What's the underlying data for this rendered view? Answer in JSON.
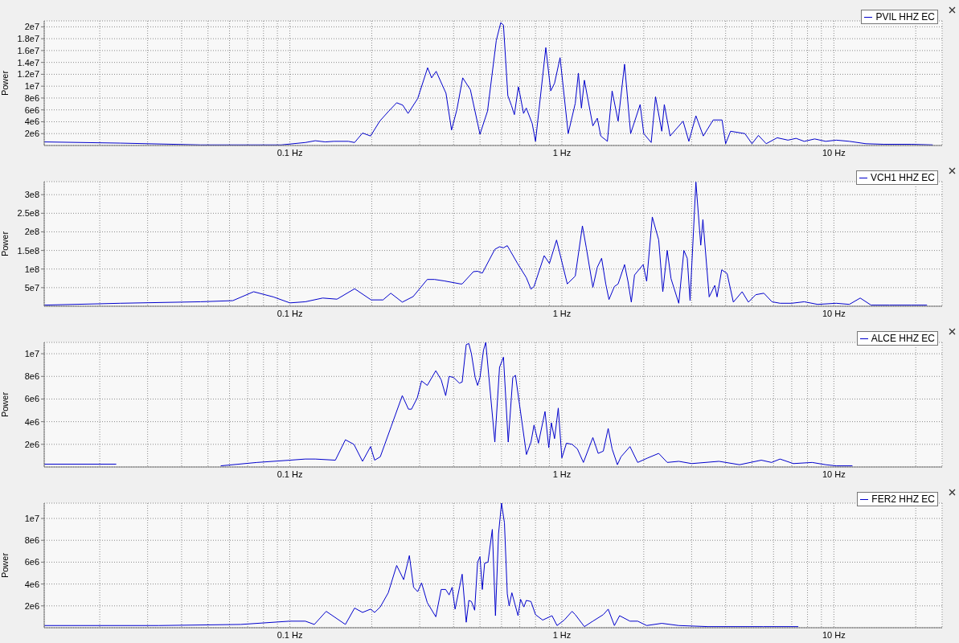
{
  "chart_data": [
    {
      "type": "line",
      "ylabel": "Power",
      "log": "x",
      "grid": true,
      "legend": "top right",
      "xlim": [
        0.0125,
        25
      ],
      "xticks": [
        {
          "value": 0.02,
          "label": null
        },
        {
          "value": 0.03,
          "label": null
        },
        {
          "value": 0.04,
          "label": null
        },
        {
          "value": 0.05,
          "label": null
        },
        {
          "value": 0.06,
          "label": null
        },
        {
          "value": 0.07,
          "label": null
        },
        {
          "value": 0.08,
          "label": null
        },
        {
          "value": 0.09,
          "label": null
        },
        {
          "value": 0.1,
          "label": "0.1 Hz"
        },
        {
          "value": 0.2,
          "label": null
        },
        {
          "value": 0.3,
          "label": null
        },
        {
          "value": 0.4,
          "label": null
        },
        {
          "value": 0.5,
          "label": null
        },
        {
          "value": 0.6,
          "label": null
        },
        {
          "value": 0.7,
          "label": null
        },
        {
          "value": 0.8,
          "label": null
        },
        {
          "value": 0.9,
          "label": null
        },
        {
          "value": 1,
          "label": "1 Hz"
        },
        {
          "value": 2,
          "label": null
        },
        {
          "value": 3,
          "label": null
        },
        {
          "value": 4,
          "label": null
        },
        {
          "value": 5,
          "label": null
        },
        {
          "value": 6,
          "label": null
        },
        {
          "value": 7,
          "label": null
        },
        {
          "value": 8,
          "label": null
        },
        {
          "value": 9,
          "label": null
        },
        {
          "value": 10,
          "label": "10 Hz"
        },
        {
          "value": 20,
          "label": null
        }
      ],
      "ylim": [
        0,
        21000000.0
      ],
      "yticks": [
        {
          "value": 2000000.0,
          "label": "2e6"
        },
        {
          "value": 4000000.0,
          "label": "4e6"
        },
        {
          "value": 6000000.0,
          "label": "6e6"
        },
        {
          "value": 8000000.0,
          "label": "8e6"
        },
        {
          "value": 10000000.0,
          "label": "1e7"
        },
        {
          "value": 12000000.0,
          "label": "1.2e7"
        },
        {
          "value": 14000000.0,
          "label": "1.4e7"
        },
        {
          "value": 16000000.0,
          "label": "1.6e7"
        },
        {
          "value": 18000000.0,
          "label": "1.8e7"
        },
        {
          "value": 20000000.0,
          "label": "2e7"
        }
      ],
      "series": [
        {
          "name": "PVIL HHZ EC",
          "color": "#0000cc",
          "x": [
            0.0125,
            0.0238,
            0.047,
            0.093,
            0.114,
            0.124,
            0.135,
            0.145,
            0.164,
            0.173,
            0.185,
            0.198,
            0.214,
            0.23,
            0.247,
            0.26,
            0.272,
            0.295,
            0.321,
            0.332,
            0.345,
            0.375,
            0.393,
            0.411,
            0.432,
            0.461,
            0.5,
            0.533,
            0.574,
            0.596,
            0.61,
            0.633,
            0.653,
            0.669,
            0.692,
            0.7,
            0.723,
            0.74,
            0.778,
            0.8,
            0.873,
            0.91,
            0.94,
            0.985,
            1.055,
            1.12,
            1.15,
            1.18,
            1.21,
            1.3,
            1.35,
            1.39,
            1.47,
            1.53,
            1.61,
            1.7,
            1.79,
            1.94,
            2.0,
            2.13,
            2.21,
            2.33,
            2.38,
            2.5,
            2.79,
            2.93,
            3.11,
            3.31,
            3.6,
            3.88,
            4.0,
            4.17,
            4.71,
            5.0,
            5.28,
            5.64,
            6.19,
            6.78,
            7.26,
            7.78,
            8.5,
            9.33,
            10.2,
            11.4,
            13.1,
            15.3,
            19.2,
            23.1
          ],
          "values": [
            600000.0,
            400000.0,
            100000.0,
            100000.0,
            500000.0,
            800000.0,
            600000.0,
            700000.0,
            700000.0,
            500000.0,
            2100000.0,
            1600000.0,
            4100000.0,
            5700000.0,
            7200000.0,
            6800000.0,
            5400000.0,
            7900000.0,
            13100000.0,
            11400000.0,
            12500000.0,
            8800000.0,
            2600000.0,
            6000000.0,
            11400000.0,
            9400000.0,
            1900000.0,
            5800000.0,
            17700000.0,
            20700000.0,
            20300000.0,
            8400000.0,
            6700000.0,
            5200000.0,
            9900000.0,
            8800000.0,
            5400000.0,
            6300000.0,
            3700000.0,
            700000.0,
            16500000.0,
            9200000.0,
            10500000.0,
            14800000.0,
            2000000.0,
            7100000.0,
            12200000.0,
            6300000.0,
            11000000.0,
            3300000.0,
            4600000.0,
            1600000.0,
            700000.0,
            9200000.0,
            4100000.0,
            13700000.0,
            2000000.0,
            6900000.0,
            2000000.0,
            500000.0,
            8200000.0,
            2400000.0,
            6900000.0,
            1600000.0,
            4100000.0,
            700000.0,
            5000000.0,
            1600000.0,
            4300000.0,
            4300000.0,
            300000.0,
            2400000.0,
            2000000.0,
            300000.0,
            1700000.0,
            300000.0,
            1300000.0,
            900000.0,
            1200000.0,
            700000.0,
            1100000.0,
            700000.0,
            900000.0,
            700000.0,
            300000.0,
            200000.0,
            200000.0,
            100000.0
          ]
        }
      ]
    },
    {
      "type": "line",
      "ylabel": "Power",
      "log": "x",
      "grid": true,
      "legend": "top right",
      "xlim": [
        0.0125,
        25
      ],
      "xticks": [
        {
          "value": 0.02,
          "label": null
        },
        {
          "value": 0.03,
          "label": null
        },
        {
          "value": 0.04,
          "label": null
        },
        {
          "value": 0.05,
          "label": null
        },
        {
          "value": 0.06,
          "label": null
        },
        {
          "value": 0.07,
          "label": null
        },
        {
          "value": 0.08,
          "label": null
        },
        {
          "value": 0.09,
          "label": null
        },
        {
          "value": 0.1,
          "label": "0.1 Hz"
        },
        {
          "value": 0.2,
          "label": null
        },
        {
          "value": 0.3,
          "label": null
        },
        {
          "value": 0.4,
          "label": null
        },
        {
          "value": 0.5,
          "label": null
        },
        {
          "value": 0.6,
          "label": null
        },
        {
          "value": 0.7,
          "label": null
        },
        {
          "value": 0.8,
          "label": null
        },
        {
          "value": 0.9,
          "label": null
        },
        {
          "value": 1,
          "label": "1 Hz"
        },
        {
          "value": 2,
          "label": null
        },
        {
          "value": 3,
          "label": null
        },
        {
          "value": 4,
          "label": null
        },
        {
          "value": 5,
          "label": null
        },
        {
          "value": 6,
          "label": null
        },
        {
          "value": 7,
          "label": null
        },
        {
          "value": 8,
          "label": null
        },
        {
          "value": 9,
          "label": null
        },
        {
          "value": 10,
          "label": "10 Hz"
        },
        {
          "value": 20,
          "label": null
        }
      ],
      "ylim": [
        0,
        335000000.0
      ],
      "yticks": [
        {
          "value": 50000000.0,
          "label": "5e7"
        },
        {
          "value": 100000000.0,
          "label": "1e8"
        },
        {
          "value": 150000000.0,
          "label": "1.5e8"
        },
        {
          "value": 200000000.0,
          "label": "2e8"
        },
        {
          "value": 250000000.0,
          "label": "2.5e8"
        },
        {
          "value": 300000000.0,
          "label": "3e8"
        }
      ],
      "series": [
        {
          "name": "VCH1 HHZ EC",
          "color": "#0000cc",
          "x": [
            0.0125,
            0.0238,
            0.047,
            0.0617,
            0.0736,
            0.087,
            0.1,
            0.114,
            0.132,
            0.149,
            0.173,
            0.199,
            0.22,
            0.235,
            0.259,
            0.284,
            0.32,
            0.34,
            0.37,
            0.424,
            0.43,
            0.473,
            0.49,
            0.51,
            0.567,
            0.59,
            0.61,
            0.63,
            0.687,
            0.74,
            0.77,
            0.79,
            0.861,
            0.9,
            0.956,
            1.047,
            1.12,
            1.19,
            1.23,
            1.3,
            1.35,
            1.4,
            1.45,
            1.49,
            1.56,
            1.61,
            1.7,
            1.75,
            1.8,
            1.85,
            1.99,
            2.05,
            2.15,
            2.27,
            2.35,
            2.44,
            2.52,
            2.69,
            2.81,
            2.89,
            2.96,
            3.11,
            3.24,
            3.3,
            3.48,
            3.65,
            3.72,
            3.87,
            4.05,
            4.27,
            4.6,
            4.85,
            5.16,
            5.53,
            5.92,
            6.34,
            7.0,
            7.78,
            8.71,
            10.2,
            11.4,
            12.5,
            13.7,
            16.0,
            19.2,
            22.0
          ],
          "values": [
            3000000.0,
            8000000.0,
            12000000.0,
            15000000.0,
            39000000.0,
            25000000.0,
            9000000.0,
            12000000.0,
            22000000.0,
            19000000.0,
            47000000.0,
            17000000.0,
            17000000.0,
            35000000.0,
            11000000.0,
            26000000.0,
            72000000.0,
            72000000.0,
            68000000.0,
            60000000.0,
            60000000.0,
            93000000.0,
            94000000.0,
            89000000.0,
            153000000.0,
            160000000.0,
            157000000.0,
            163000000.0,
            115000000.0,
            77000000.0,
            46000000.0,
            53000000.0,
            136000000.0,
            115000000.0,
            178000000.0,
            60000000.0,
            81000000.0,
            216000000.0,
            157000000.0,
            51000000.0,
            105000000.0,
            129000000.0,
            60000000.0,
            18000000.0,
            53000000.0,
            60000000.0,
            112000000.0,
            67000000.0,
            11000000.0,
            84000000.0,
            112000000.0,
            67000000.0,
            240000000.0,
            178000000.0,
            39000000.0,
            150000000.0,
            74000000.0,
            8000000.0,
            150000000.0,
            129000000.0,
            15000000.0,
            334000000.0,
            164000000.0,
            233000000.0,
            25000000.0,
            56000000.0,
            25000000.0,
            98000000.0,
            88000000.0,
            11000000.0,
            39000000.0,
            11000000.0,
            31000000.0,
            35000000.0,
            12000000.0,
            8000000.0,
            8000000.0,
            12000000.0,
            5000000.0,
            8000000.0,
            5000000.0,
            22000000.0,
            3000000.0,
            3000000.0,
            3000000.0,
            3000000.0
          ]
        }
      ]
    },
    {
      "type": "line",
      "ylabel": "Power",
      "log": "x",
      "grid": true,
      "legend": "top right",
      "xlim": [
        0.0125,
        25
      ],
      "xticks": [
        {
          "value": 0.02,
          "label": null
        },
        {
          "value": 0.03,
          "label": null
        },
        {
          "value": 0.04,
          "label": null
        },
        {
          "value": 0.05,
          "label": null
        },
        {
          "value": 0.06,
          "label": null
        },
        {
          "value": 0.07,
          "label": null
        },
        {
          "value": 0.08,
          "label": null
        },
        {
          "value": 0.09,
          "label": null
        },
        {
          "value": 0.1,
          "label": "0.1 Hz"
        },
        {
          "value": 0.2,
          "label": null
        },
        {
          "value": 0.3,
          "label": null
        },
        {
          "value": 0.4,
          "label": null
        },
        {
          "value": 0.5,
          "label": null
        },
        {
          "value": 0.6,
          "label": null
        },
        {
          "value": 0.7,
          "label": null
        },
        {
          "value": 0.8,
          "label": null
        },
        {
          "value": 0.9,
          "label": null
        },
        {
          "value": 1,
          "label": "1 Hz"
        },
        {
          "value": 2,
          "label": null
        },
        {
          "value": 3,
          "label": null
        },
        {
          "value": 4,
          "label": null
        },
        {
          "value": 5,
          "label": null
        },
        {
          "value": 6,
          "label": null
        },
        {
          "value": 7,
          "label": null
        },
        {
          "value": 8,
          "label": null
        },
        {
          "value": 9,
          "label": null
        },
        {
          "value": 10,
          "label": "10 Hz"
        },
        {
          "value": 20,
          "label": null
        }
      ],
      "ylim": [
        0,
        11000000.0
      ],
      "yticks": [
        {
          "value": 2000000.0,
          "label": "2e6"
        },
        {
          "value": 4000000.0,
          "label": "4e6"
        },
        {
          "value": 6000000.0,
          "label": "6e6"
        },
        {
          "value": 8000000.0,
          "label": "8e6"
        },
        {
          "value": 10000000.0,
          "label": "1e7"
        }
      ],
      "series": [
        {
          "name": "ALCE HHZ EC",
          "color": "#0000cc",
          "x": [
            0.0125,
            0.023,
            0.03,
            0.0557,
            0.0757,
            0.1,
            0.114,
            0.124,
            0.147,
            0.16,
            0.172,
            0.185,
            0.198,
            0.205,
            0.215,
            0.236,
            0.259,
            0.273,
            0.28,
            0.294,
            0.305,
            0.32,
            0.344,
            0.36,
            0.374,
            0.385,
            0.4,
            0.42,
            0.43,
            0.445,
            0.455,
            0.465,
            0.48,
            0.49,
            0.5,
            0.515,
            0.525,
            0.567,
            0.59,
            0.61,
            0.635,
            0.66,
            0.675,
            0.741,
            0.77,
            0.79,
            0.82,
            0.867,
            0.895,
            0.915,
            0.94,
            0.97,
            1.0,
            1.04,
            1.09,
            1.14,
            1.2,
            1.3,
            1.36,
            1.42,
            1.48,
            1.53,
            1.6,
            1.65,
            1.78,
            1.9,
            2.07,
            2.27,
            2.44,
            2.69,
            3.0,
            3.78,
            4.5,
            5.41,
            5.9,
            6.34,
            7.1,
            8.32,
            9.33,
            10.2,
            11.7
          ],
          "values": [
            250000.0,
            250000.0,
            null,
            100000.0,
            400000.0,
            600000.0,
            700000.0,
            700000.0,
            600000.0,
            2400000.0,
            2000000.0,
            500000.0,
            1800000.0,
            600000.0,
            900000.0,
            3600000.0,
            6300000.0,
            5100000.0,
            5100000.0,
            6100000.0,
            7600000.0,
            7200000.0,
            8500000.0,
            7700000.0,
            6300000.0,
            8000000.0,
            7900000.0,
            7400000.0,
            7500000.0,
            10800000.0,
            10900000.0,
            10000000.0,
            7900000.0,
            7200000.0,
            7900000.0,
            10300000.0,
            11000000.0,
            2200000.0,
            8800000.0,
            9700000.0,
            2200000.0,
            7900000.0,
            8100000.0,
            1100000.0,
            2200000.0,
            3700000.0,
            2100000.0,
            4900000.0,
            1700000.0,
            3900000.0,
            2500000.0,
            5200000.0,
            800000.0,
            2100000.0,
            2000000.0,
            1600000.0,
            400000.0,
            2600000.0,
            1200000.0,
            1400000.0,
            3400000.0,
            1600000.0,
            200000.0,
            900000.0,
            1800000.0,
            400000.0,
            800000.0,
            1200000.0,
            400000.0,
            500000.0,
            300000.0,
            500000.0,
            200000.0,
            600000.0,
            400000.0,
            700000.0,
            300000.0,
            400000.0,
            200000.0,
            100000.0,
            100000.0
          ]
        }
      ]
    },
    {
      "type": "line",
      "ylabel": "Power",
      "log": "x",
      "grid": true,
      "legend": "top right",
      "xlim": [
        0.0125,
        25
      ],
      "xticks": [
        {
          "value": 0.02,
          "label": null
        },
        {
          "value": 0.03,
          "label": null
        },
        {
          "value": 0.04,
          "label": null
        },
        {
          "value": 0.05,
          "label": null
        },
        {
          "value": 0.06,
          "label": null
        },
        {
          "value": 0.07,
          "label": null
        },
        {
          "value": 0.08,
          "label": null
        },
        {
          "value": 0.09,
          "label": null
        },
        {
          "value": 0.1,
          "label": "0.1 Hz"
        },
        {
          "value": 0.2,
          "label": null
        },
        {
          "value": 0.3,
          "label": null
        },
        {
          "value": 0.4,
          "label": null
        },
        {
          "value": 0.5,
          "label": null
        },
        {
          "value": 0.6,
          "label": null
        },
        {
          "value": 0.7,
          "label": null
        },
        {
          "value": 0.8,
          "label": null
        },
        {
          "value": 0.9,
          "label": null
        },
        {
          "value": 1,
          "label": "1 Hz"
        },
        {
          "value": 2,
          "label": null
        },
        {
          "value": 3,
          "label": null
        },
        {
          "value": 4,
          "label": null
        },
        {
          "value": 5,
          "label": null
        },
        {
          "value": 6,
          "label": null
        },
        {
          "value": 7,
          "label": null
        },
        {
          "value": 8,
          "label": null
        },
        {
          "value": 9,
          "label": null
        },
        {
          "value": 10,
          "label": "10 Hz"
        },
        {
          "value": 20,
          "label": null
        }
      ],
      "ylim": [
        0,
        11400000.0
      ],
      "yticks": [
        {
          "value": 2000000.0,
          "label": "2e6"
        },
        {
          "value": 4000000.0,
          "label": "4e6"
        },
        {
          "value": 6000000.0,
          "label": "6e6"
        },
        {
          "value": 8000000.0,
          "label": "8e6"
        },
        {
          "value": 10000000.0,
          "label": "1e7"
        }
      ],
      "series": [
        {
          "name": "FER2 HHZ EC",
          "color": "#0000cc",
          "x": [
            0.0125,
            0.033,
            0.066,
            0.1,
            0.114,
            0.123,
            0.136,
            0.16,
            0.173,
            0.185,
            0.198,
            0.205,
            0.215,
            0.23,
            0.247,
            0.262,
            0.275,
            0.285,
            0.295,
            0.305,
            0.32,
            0.344,
            0.36,
            0.374,
            0.385,
            0.395,
            0.405,
            0.43,
            0.445,
            0.455,
            0.465,
            0.478,
            0.49,
            0.5,
            0.51,
            0.52,
            0.535,
            0.555,
            0.57,
            0.585,
            0.6,
            0.615,
            0.63,
            0.64,
            0.655,
            0.69,
            0.705,
            0.725,
            0.74,
            0.77,
            0.8,
            0.85,
            0.92,
            0.96,
            1.02,
            1.09,
            1.12,
            1.21,
            1.3,
            1.42,
            1.48,
            1.56,
            1.63,
            1.78,
            1.9,
            2.05,
            2.33,
            2.69,
            3.45,
            4.5,
            5.5,
            7.4
          ],
          "values": [
            200000.0,
            200000.0,
            300000.0,
            600000.0,
            600000.0,
            300000.0,
            1500000.0,
            300000.0,
            1800000.0,
            1400000.0,
            1700000.0,
            1400000.0,
            1900000.0,
            3200000.0,
            5700000.0,
            4400000.0,
            6600000.0,
            3700000.0,
            3300000.0,
            4100000.0,
            2300000.0,
            1000000.0,
            3500000.0,
            3500000.0,
            3000000.0,
            3700000.0,
            1700000.0,
            4900000.0,
            500000.0,
            2500000.0,
            2400000.0,
            1600000.0,
            6000000.0,
            6500000.0,
            3500000.0,
            5900000.0,
            6000000.0,
            9000000.0,
            1100000.0,
            8600000.0,
            11400000.0,
            9600000.0,
            3100000.0,
            2000000.0,
            3200000.0,
            1100000.0,
            2600000.0,
            1900000.0,
            2500000.0,
            2400000.0,
            1200000.0,
            700000.0,
            1100000.0,
            200000.0,
            700000.0,
            1500000.0,
            1200000.0,
            100000.0,
            600000.0,
            1200000.0,
            1700000.0,
            200000.0,
            1100000.0,
            600000.0,
            600000.0,
            200000.0,
            400000.0,
            200000.0,
            100000.0,
            100000.0,
            100000.0,
            100000.0
          ]
        }
      ]
    }
  ]
}
